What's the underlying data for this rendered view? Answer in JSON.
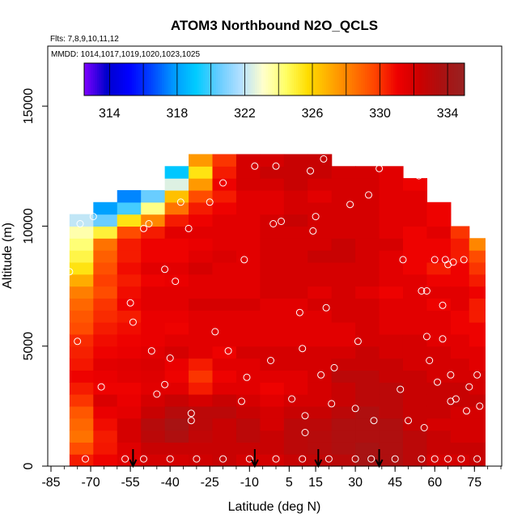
{
  "chart_data": {
    "type": "heatmap",
    "title": "ATOM3 Northbound N2O_QCLS",
    "flights_label": "Flts: 7,8,9,10,11,12",
    "dates_label": "MMDD: 1014,1017,1019,1020,1023,1025",
    "xlabel": "Latitude (deg N)",
    "ylabel": "Altitude (m)",
    "xlim": [
      -85,
      85
    ],
    "ylim": [
      0,
      17500
    ],
    "x_ticks": [
      -85,
      -70,
      -55,
      -40,
      -25,
      -10,
      5,
      15,
      30,
      45,
      60,
      75
    ],
    "y_ticks": [
      0,
      5000,
      10000,
      15000
    ],
    "colorbar": {
      "min": 312.5,
      "max": 335.0,
      "tick_values": [
        314,
        318,
        322,
        326,
        330,
        334
      ],
      "tick_labels": [
        "314",
        "318",
        "322",
        "326",
        "330",
        "334"
      ],
      "colors": [
        "#7f00ff",
        "#0000cc",
        "#0000ff",
        "#0044ff",
        "#0099ff",
        "#00ccff",
        "#66ccff",
        "#b3e0ff",
        "#ffffcc",
        "#ffff66",
        "#ffdd00",
        "#ffaa00",
        "#ff7700",
        "#ff4400",
        "#ee0000",
        "#cc0000",
        "#aa1111",
        "#992222"
      ]
    },
    "arrow_latitudes": [
      -54,
      -8,
      16,
      39
    ],
    "profiles": [
      {
        "lat_range": [
          -78,
          -69
        ],
        "top": 10500,
        "values": [
          330.5,
          329.5,
          328.5,
          328.8,
          329.2,
          330.0,
          330.5,
          331.0,
          330.6,
          330.4,
          330.2,
          329.5,
          329.2,
          328.8,
          328.2,
          327.0,
          325.5,
          324.8,
          324.2,
          323.5,
          322.0
        ]
      },
      {
        "lat_range": [
          -69,
          -60
        ],
        "top": 11000,
        "values": [
          331.0,
          330.6,
          330.5,
          330.8,
          331.2,
          331.8,
          331.0,
          331.2,
          331.5,
          331.0,
          330.8,
          330.5,
          330.2,
          330.0,
          329.5,
          329.8,
          329.4,
          329.0,
          328.5,
          325.0,
          320.5,
          318.0
        ]
      },
      {
        "lat_range": [
          -60,
          -51
        ],
        "top": 11500,
        "values": [
          331.5,
          331.6,
          332.0,
          332.0,
          331.4,
          331.2,
          331.0,
          331.5,
          331.6,
          331.2,
          331.0,
          330.8,
          330.5,
          331.0,
          330.8,
          330.5,
          330.8,
          330.5,
          330.5,
          329.5,
          325.5,
          320.0,
          317.5
        ]
      },
      {
        "lat_range": [
          -51,
          -42
        ],
        "top": 11500,
        "values": [
          332.0,
          332.5,
          333.0,
          333.2,
          332.5,
          332.0,
          331.5,
          331.6,
          331.8,
          331.5,
          331.2,
          331.2,
          331.2,
          331.5,
          331.5,
          331.0,
          331.5,
          331.0,
          331.0,
          330.5,
          328.0,
          324.0,
          320.5
        ]
      },
      {
        "lat_range": [
          -42,
          -33
        ],
        "top": 12500,
        "values": [
          332.0,
          332.5,
          333.5,
          333.8,
          333.2,
          332.5,
          331.5,
          331.0,
          331.2,
          332.0,
          331.5,
          331.0,
          331.2,
          331.5,
          331.5,
          331.2,
          331.5,
          331.0,
          331.0,
          331.5,
          330.5,
          328.5,
          326.5,
          322.5,
          319.0
        ]
      },
      {
        "lat_range": [
          -33,
          -24
        ],
        "top": 13000,
        "values": [
          332.2,
          332.5,
          332.8,
          333.0,
          333.0,
          332.0,
          330.5,
          330.0,
          330.5,
          331.5,
          331.5,
          331.5,
          331.5,
          332.0,
          331.5,
          331.5,
          332.0,
          331.5,
          331.2,
          331.5,
          331.0,
          330.5,
          329.5,
          327.5,
          325.5,
          327.5
        ]
      },
      {
        "lat_range": [
          -24,
          -15
        ],
        "top": 13000,
        "values": [
          332.5,
          332.5,
          332.5,
          332.5,
          333.0,
          332.5,
          331.5,
          331.0,
          331.5,
          331.0,
          331.5,
          331.5,
          331.5,
          332.0,
          331.5,
          331.5,
          331.5,
          331.8,
          331.5,
          331.5,
          331.5,
          331.0,
          330.5,
          331.0,
          330.5,
          330.0
        ]
      },
      {
        "lat_range": [
          -15,
          -6
        ],
        "top": 13000,
        "values": [
          332.0,
          332.5,
          333.0,
          333.0,
          332.5,
          332.0,
          331.5,
          331.5,
          331.5,
          332.0,
          331.5,
          331.5,
          331.5,
          332.0,
          331.5,
          331.5,
          331.5,
          331.5,
          331.5,
          331.5,
          331.5,
          331.5,
          331.5,
          332.0,
          332.0,
          332.0
        ]
      },
      {
        "lat_range": [
          -6,
          3
        ],
        "top": 13000,
        "values": [
          332.0,
          332.5,
          332.5,
          332.0,
          332.0,
          331.5,
          331.0,
          331.5,
          332.0,
          332.0,
          331.5,
          331.5,
          331.5,
          331.5,
          332.0,
          332.0,
          332.0,
          332.0,
          332.0,
          332.0,
          332.0,
          331.5,
          331.5,
          332.0,
          332.5,
          332.0
        ]
      },
      {
        "lat_range": [
          3,
          12
        ],
        "top": 13000,
        "values": [
          332.5,
          333.0,
          333.0,
          333.0,
          332.5,
          332.0,
          331.5,
          331.5,
          332.0,
          332.0,
          331.5,
          331.5,
          331.5,
          331.5,
          332.0,
          332.0,
          332.0,
          332.0,
          332.0,
          332.0,
          332.5,
          332.0,
          332.0,
          332.5,
          332.5,
          332.5
        ]
      },
      {
        "lat_range": [
          12,
          21
        ],
        "top": 13000,
        "values": [
          332.8,
          333.2,
          333.2,
          333.0,
          332.5,
          332.0,
          332.0,
          332.0,
          332.0,
          332.0,
          331.5,
          331.5,
          331.5,
          332.0,
          331.5,
          332.0,
          332.0,
          332.5,
          332.0,
          332.0,
          332.0,
          332.0,
          331.5,
          332.0,
          332.5,
          332.5
        ]
      },
      {
        "lat_range": [
          21,
          30
        ],
        "top": 12500,
        "values": [
          333.0,
          333.5,
          333.5,
          333.5,
          333.0,
          332.5,
          332.5,
          333.0,
          332.5,
          332.0,
          331.5,
          331.5,
          332.0,
          332.0,
          332.0,
          332.0,
          332.0,
          332.5,
          332.5,
          332.0,
          332.0,
          332.0,
          332.0,
          332.0,
          332.0
        ]
      },
      {
        "lat_range": [
          30,
          39
        ],
        "top": 12500,
        "values": [
          333.8,
          333.8,
          333.5,
          333.5,
          333.5,
          333.0,
          333.0,
          333.0,
          332.5,
          332.5,
          332.0,
          332.0,
          332.0,
          332.0,
          331.5,
          332.0,
          332.0,
          332.0,
          332.0,
          332.0,
          332.0,
          332.0,
          332.0,
          332.0,
          332.0
        ]
      },
      {
        "lat_range": [
          39,
          48
        ],
        "top": 12500,
        "values": [
          333.5,
          333.5,
          333.5,
          333.5,
          333.0,
          333.0,
          333.0,
          332.5,
          332.5,
          332.0,
          332.0,
          331.5,
          331.5,
          331.5,
          331.0,
          331.5,
          331.5,
          331.5,
          332.0,
          331.5,
          331.5,
          331.5,
          331.5,
          331.5,
          331.5
        ]
      },
      {
        "lat_range": [
          48,
          57
        ],
        "top": 12000,
        "values": [
          333.0,
          333.0,
          333.0,
          332.5,
          332.5,
          332.5,
          332.5,
          332.5,
          332.0,
          332.0,
          332.0,
          331.5,
          331.5,
          331.5,
          331.5,
          331.5,
          331.0,
          331.0,
          331.0,
          331.0,
          331.5,
          331.5,
          331.5,
          331.0
        ]
      },
      {
        "lat_range": [
          57,
          66
        ],
        "top": 11000,
        "values": [
          332.0,
          332.5,
          332.5,
          332.0,
          332.5,
          332.5,
          332.5,
          332.0,
          332.0,
          332.0,
          331.5,
          331.5,
          331.5,
          331.0,
          331.5,
          331.0,
          330.5,
          331.0,
          331.0,
          331.5,
          331.0,
          331.0
        ]
      },
      {
        "lat_range": [
          66,
          73
        ],
        "top": 10000,
        "values": [
          332.0,
          332.5,
          332.0,
          332.0,
          332.0,
          332.5,
          332.5,
          332.0,
          332.0,
          331.5,
          331.5,
          331.0,
          331.0,
          331.5,
          331.5,
          331.0,
          331.0,
          330.5,
          330.5,
          330.0
        ]
      },
      {
        "lat_range": [
          73,
          79
        ],
        "top": 9500,
        "values": [
          332.5,
          332.5,
          332.0,
          332.0,
          332.0,
          332.5,
          332.0,
          332.0,
          331.5,
          331.5,
          331.0,
          331.0,
          330.5,
          330.5,
          331.0,
          330.5,
          330.0,
          329.5,
          328.0
        ]
      }
    ],
    "observations": [
      [
        -78,
        8100
      ],
      [
        -74,
        10100
      ],
      [
        -75,
        5200
      ],
      [
        -72,
        300
      ],
      [
        -66,
        3300
      ],
      [
        -69,
        10400
      ],
      [
        -55,
        6800
      ],
      [
        -54,
        6000
      ],
      [
        -50,
        9900
      ],
      [
        -48,
        10100
      ],
      [
        -47,
        4800
      ],
      [
        -42,
        8200
      ],
      [
        -40,
        4500
      ],
      [
        -45,
        3000
      ],
      [
        -38,
        7700
      ],
      [
        -36,
        11000
      ],
      [
        -42,
        3400
      ],
      [
        -33,
        9900
      ],
      [
        -32,
        1900
      ],
      [
        -32,
        2200
      ],
      [
        -25,
        11000
      ],
      [
        -20,
        11800
      ],
      [
        -23,
        5600
      ],
      [
        -18,
        4800
      ],
      [
        -13,
        2700
      ],
      [
        -12,
        8600
      ],
      [
        -11,
        3700
      ],
      [
        -8,
        12500
      ],
      [
        -1,
        10100
      ],
      [
        0,
        12500
      ],
      [
        -2,
        4400
      ],
      [
        2,
        10200
      ],
      [
        6,
        2800
      ],
      [
        9,
        6400
      ],
      [
        10,
        4900
      ],
      [
        11,
        2100
      ],
      [
        11,
        1400
      ],
      [
        13,
        12300
      ],
      [
        14,
        9800
      ],
      [
        15,
        10400
      ],
      [
        17,
        3800
      ],
      [
        18,
        12800
      ],
      [
        19,
        6600
      ],
      [
        21,
        2600
      ],
      [
        22,
        4100
      ],
      [
        28,
        10900
      ],
      [
        30,
        2400
      ],
      [
        31,
        5200
      ],
      [
        35,
        11300
      ],
      [
        37,
        1900
      ],
      [
        39,
        12400
      ],
      [
        47,
        3200
      ],
      [
        48,
        8600
      ],
      [
        50,
        1900
      ],
      [
        54,
        12100
      ],
      [
        55,
        7300
      ],
      [
        57,
        7300
      ],
      [
        57,
        5400
      ],
      [
        58,
        4400
      ],
      [
        56,
        1600
      ],
      [
        60,
        8600
      ],
      [
        61,
        3500
      ],
      [
        63,
        5300
      ],
      [
        63,
        6700
      ],
      [
        64,
        8600
      ],
      [
        65,
        8400
      ],
      [
        66,
        2700
      ],
      [
        66,
        3800
      ],
      [
        67,
        8500
      ],
      [
        68,
        2800
      ],
      [
        71,
        8600
      ],
      [
        72,
        2300
      ],
      [
        73,
        3300
      ],
      [
        76,
        3800
      ],
      [
        77,
        2500
      ],
      [
        -57,
        300
      ],
      [
        -50,
        300
      ],
      [
        -40,
        300
      ],
      [
        -30,
        300
      ],
      [
        -20,
        300
      ],
      [
        -10,
        300
      ],
      [
        0,
        300
      ],
      [
        10,
        300
      ],
      [
        20,
        300
      ],
      [
        30,
        300
      ],
      [
        36,
        300
      ],
      [
        45,
        300
      ],
      [
        55,
        300
      ],
      [
        60,
        300
      ],
      [
        65,
        300
      ],
      [
        70,
        300
      ],
      [
        76,
        300
      ]
    ],
    "grid": false,
    "legend": "colorbar top"
  }
}
